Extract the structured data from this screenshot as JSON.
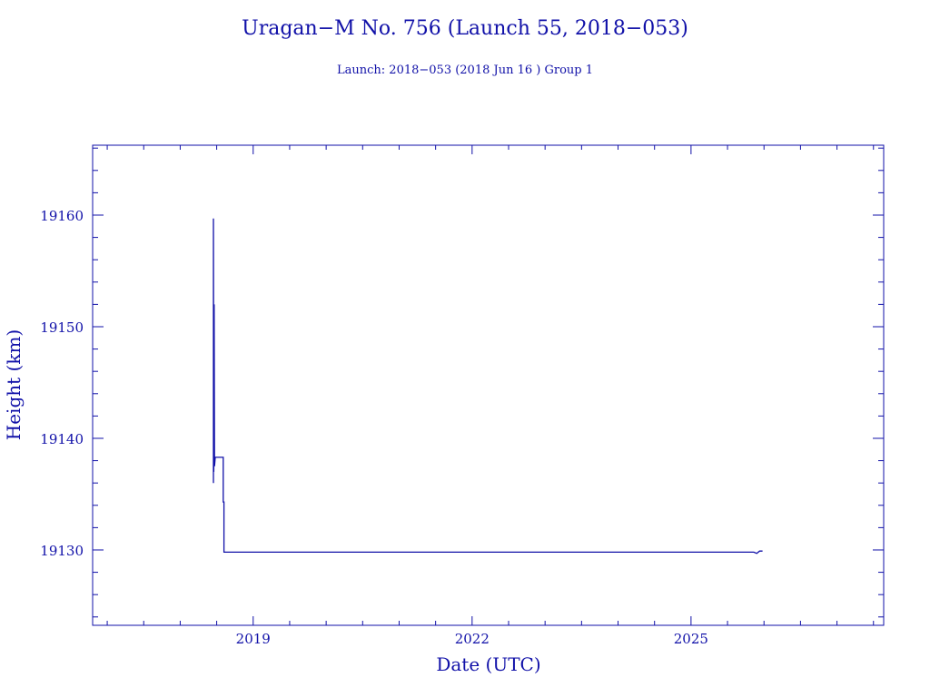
{
  "chart_data": {
    "type": "line",
    "title": "Uragan−M No. 756 (Launch 55, 2018−053)",
    "subtitle": "Launch: 2018−053  (2018 Jun 16 )  Group 1",
    "xlabel": "Date (UTC)",
    "ylabel": "Height (km)",
    "xlim": [
      2016.8,
      2027.64
    ],
    "ylim": [
      19123.25,
      19166.26
    ],
    "x_ticks": [
      2019,
      2022,
      2025
    ],
    "x_tick_labels": [
      "2019",
      "2022",
      "2025"
    ],
    "x_minor_step": 0.5,
    "y_ticks": [
      19130,
      19140,
      19150,
      19160
    ],
    "y_tick_labels": [
      "19130",
      "19140",
      "19150",
      "19160"
    ],
    "y_minor_step": 2,
    "grid": false,
    "color": "#1010a8",
    "series": [
      {
        "name": "Height",
        "points": [
          [
            2018.455,
            19136.0
          ],
          [
            2018.455,
            19159.7
          ],
          [
            2018.46,
            19137.0
          ],
          [
            2018.465,
            19152.0
          ],
          [
            2018.47,
            19137.5
          ],
          [
            2018.48,
            19138.3
          ],
          [
            2018.59,
            19138.3
          ],
          [
            2018.59,
            19134.3
          ],
          [
            2018.6,
            19134.3
          ],
          [
            2018.6,
            19129.8
          ],
          [
            2025.86,
            19129.8
          ],
          [
            2025.9,
            19129.7
          ],
          [
            2025.94,
            19129.9
          ],
          [
            2025.98,
            19129.9
          ]
        ]
      }
    ]
  }
}
